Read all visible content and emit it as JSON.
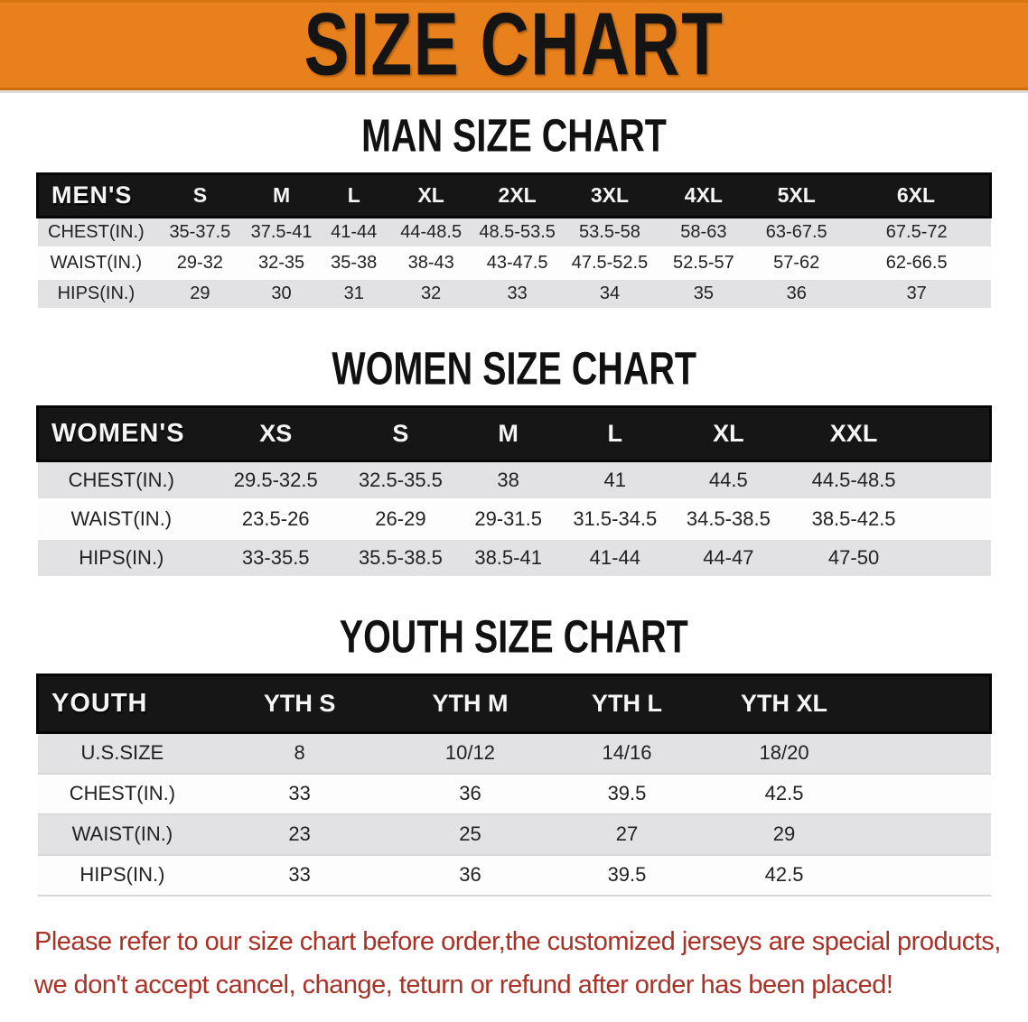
{
  "banner": {
    "title": "SIZE CHART",
    "bg_color": "#E8811C",
    "text_color": "#141414"
  },
  "sections": [
    {
      "title": "MAN SIZE CHART",
      "header_label": "MEN'S",
      "columns": [
        "S",
        "M",
        "L",
        "XL",
        "2XL",
        "3XL",
        "4XL",
        "5XL",
        "6XL"
      ],
      "rows": [
        {
          "label": "CHEST(IN.)",
          "values": [
            "35-37.5",
            "37.5-41",
            "41-44",
            "44-48.5",
            "48.5-53.5",
            "53.5-58",
            "58-63",
            "63-67.5",
            "67.5-72"
          ]
        },
        {
          "label": "WAIST(IN.)",
          "values": [
            "29-32",
            "32-35",
            "35-38",
            "38-43",
            "43-47.5",
            "47.5-52.5",
            "52.5-57",
            "57-62",
            "62-66.5"
          ]
        },
        {
          "label": "HIPS(IN.)",
          "values": [
            "29",
            "30",
            "31",
            "32",
            "33",
            "34",
            "35",
            "36",
            "37"
          ]
        }
      ]
    },
    {
      "title": "WOMEN SIZE CHART",
      "header_label": "WOMEN'S",
      "columns": [
        "XS",
        "S",
        "M",
        "L",
        "XL",
        "XXL"
      ],
      "rows": [
        {
          "label": "CHEST(IN.)",
          "values": [
            "29.5-32.5",
            "32.5-35.5",
            "38",
            "41",
            "44.5",
            "44.5-48.5"
          ]
        },
        {
          "label": "WAIST(IN.)",
          "values": [
            "23.5-26",
            "26-29",
            "29-31.5",
            "31.5-34.5",
            "34.5-38.5",
            "38.5-42.5"
          ]
        },
        {
          "label": "HIPS(IN.)",
          "values": [
            "33-35.5",
            "35.5-38.5",
            "38.5-41",
            "41-44",
            "44-47",
            "47-50"
          ]
        }
      ]
    },
    {
      "title": "YOUTH SIZE CHART",
      "header_label": "YOUTH",
      "columns": [
        "YTH S",
        "YTH M",
        "YTH L",
        "YTH XL"
      ],
      "rows": [
        {
          "label": "U.S.SIZE",
          "values": [
            "8",
            "10/12",
            "14/16",
            "18/20"
          ]
        },
        {
          "label": "CHEST(IN.)",
          "values": [
            "33",
            "36",
            "39.5",
            "42.5"
          ]
        },
        {
          "label": "WAIST(IN.)",
          "values": [
            "23",
            "25",
            "27",
            "29"
          ]
        },
        {
          "label": "HIPS(IN.)",
          "values": [
            "33",
            "36",
            "39.5",
            "42.5"
          ]
        }
      ]
    }
  ],
  "footer": {
    "line1": "Please refer to our size chart before order,the customized jerseys are special products,",
    "line2": "we don't accept cancel, change, teturn or refund after order has been placed!",
    "text_color": "#A93226"
  },
  "colors": {
    "banner_orange": "#E8811C",
    "header_black": "#161616",
    "stripe_gray": "#E2E2E4",
    "row_white": "#FDFDFD",
    "footer_red": "#A93226"
  }
}
